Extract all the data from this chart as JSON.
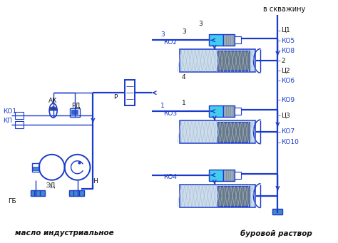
{
  "bg_color": "#ffffff",
  "lc": "#1a3acc",
  "bottom_label_left": "масло индустриальное",
  "bottom_label_right": "буровой раствор",
  "top_right_label": "в скважину",
  "cyan_fill": "#44ccee",
  "gray_fill": "#8899aa",
  "hatch_fill": "#ccddee",
  "blue_fill": "#4488cc",
  "dark_gray": "#667788",
  "label_color": "#1a3acc",
  "text_color": "#111111"
}
